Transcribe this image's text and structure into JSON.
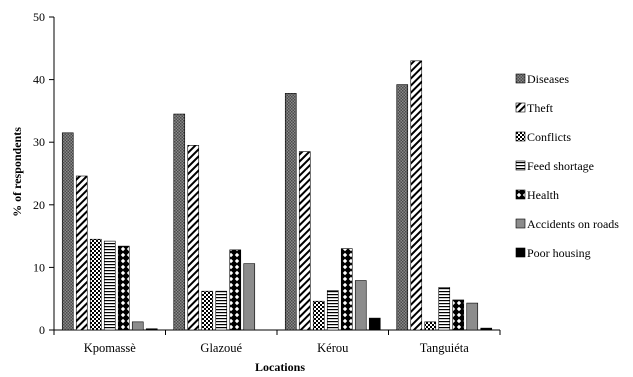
{
  "chart_data": {
    "type": "bar",
    "title": "",
    "xlabel": "Locations",
    "ylabel": "% of respondents",
    "ylim": [
      0,
      50
    ],
    "yticks": [
      "0",
      "10",
      "20",
      "30",
      "40",
      "50"
    ],
    "categories": [
      "Kpomassè",
      "Glazoué",
      "Kérou",
      "Tanguiéta"
    ],
    "legend_position": "right",
    "grid": false,
    "series": [
      {
        "name": "Diseases",
        "pattern": "dense-grey",
        "values": [
          31.5,
          34.5,
          37.8,
          39.2
        ]
      },
      {
        "name": "Theft",
        "pattern": "diagonal-stripes",
        "values": [
          24.6,
          29.5,
          28.5,
          43.0
        ]
      },
      {
        "name": "Conflicts",
        "pattern": "checker",
        "values": [
          14.5,
          6.2,
          4.6,
          1.3
        ]
      },
      {
        "name": "Feed shortage",
        "pattern": "horizontal-lines",
        "values": [
          14.2,
          6.2,
          6.3,
          6.8
        ]
      },
      {
        "name": "Health",
        "pattern": "black-diamonds",
        "values": [
          13.4,
          12.8,
          13.0,
          4.8
        ]
      },
      {
        "name": "Accidents on roads",
        "pattern": "grey",
        "values": [
          1.3,
          10.6,
          7.9,
          4.3
        ]
      },
      {
        "name": "Poor housing",
        "pattern": "black",
        "values": [
          0.2,
          0.0,
          1.9,
          0.3
        ]
      }
    ]
  }
}
